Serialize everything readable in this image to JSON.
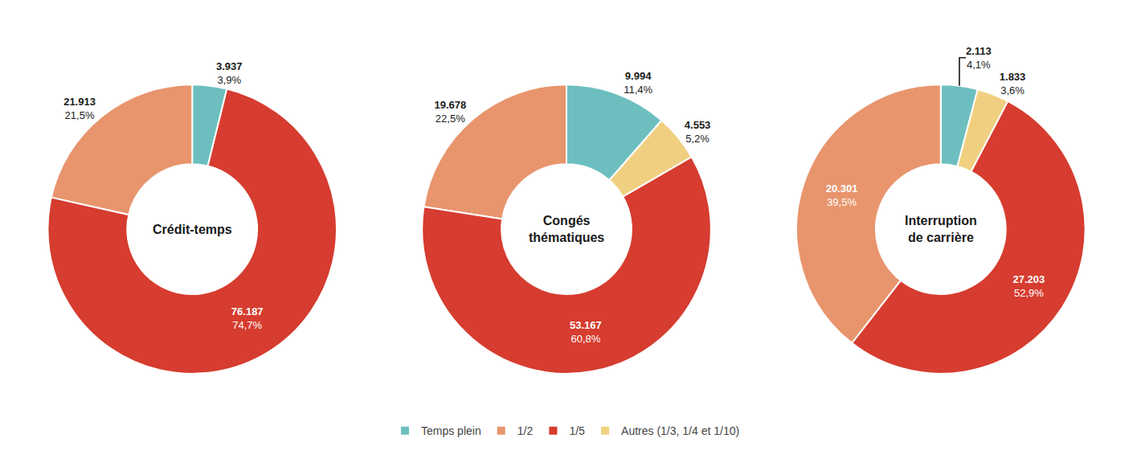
{
  "chart_data": [
    {
      "type": "pie",
      "title": "Crédit-temps",
      "categories": [
        "Temps plein",
        "1/2",
        "1/5"
      ],
      "values": [
        3937,
        21913,
        76187
      ],
      "value_labels": [
        "3.937",
        "21.913",
        "76.187"
      ],
      "percentages": [
        3.9,
        21.5,
        74.7
      ],
      "percentage_labels": [
        "3,9%",
        "21,5%",
        "74,7%"
      ],
      "colors": [
        "#6dbfbf",
        "#e8956d",
        "#d63c2f"
      ],
      "data_labels": true,
      "legend": "bottom"
    },
    {
      "type": "pie",
      "title": "Congés\nthématiques",
      "categories": [
        "Temps plein",
        "1/2",
        "1/5",
        "Autres (1/3, 1/4 et 1/10)"
      ],
      "values": [
        9994,
        19678,
        53167,
        4553
      ],
      "value_labels": [
        "9.994",
        "19.678",
        "53.167",
        "4.553"
      ],
      "percentages": [
        11.4,
        22.5,
        60.8,
        5.2
      ],
      "percentage_labels": [
        "11,4%",
        "22,5%",
        "60,8%",
        "5,2%"
      ],
      "colors": [
        "#6dbfbf",
        "#e8956d",
        "#d63c2f",
        "#f0d080"
      ],
      "data_labels": true,
      "legend": "bottom"
    },
    {
      "type": "pie",
      "title": "Interruption\nde carrière",
      "categories": [
        "Temps plein",
        "1/2",
        "1/5",
        "Autres (1/3, 1/4 et 1/10)"
      ],
      "values": [
        2113,
        20301,
        27203,
        1833
      ],
      "value_labels": [
        "2.113",
        "20.301",
        "27.203",
        "1.833"
      ],
      "percentages": [
        4.1,
        39.5,
        52.9,
        3.6
      ],
      "percentage_labels": [
        "4,1%",
        "39,5%",
        "52,9%",
        "3,6%"
      ],
      "colors": [
        "#6dbfbf",
        "#e8956d",
        "#d63c2f",
        "#f0d080"
      ],
      "data_labels": true,
      "legend": "bottom"
    }
  ]
}
